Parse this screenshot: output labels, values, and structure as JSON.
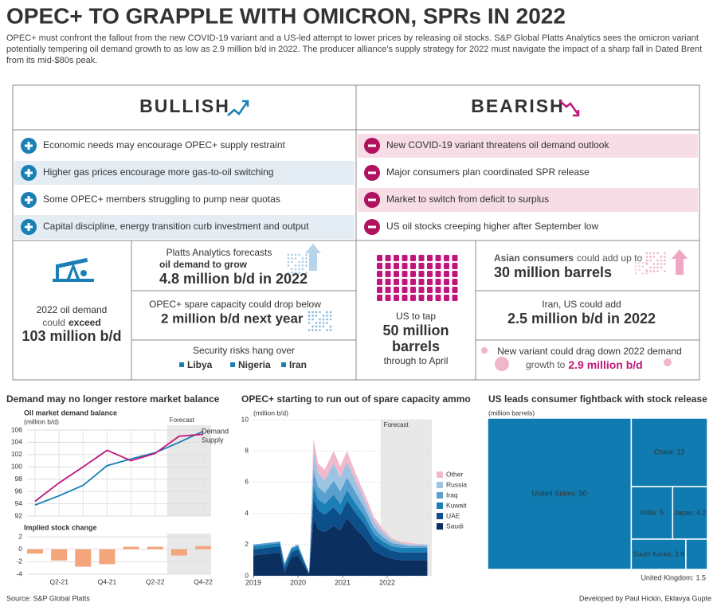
{
  "header": {
    "title": "OPEC+ TO GRAPPLE WITH OMICRON, SPRs IN 2022",
    "subtitle": "OPEC+ must confront the fallout from the new COVID-19 variant and a US-led attempt to lower prices by releasing oil stocks. S&P Global Platts Analytics sees the omicron variant potentially tempering oil demand growth to as low as 2.9 million b/d in 2022. The producer alliance's supply strategy for 2022 must navigate the impact of a sharp fall in Dated Brent from its mid-$80s peak."
  },
  "bullish": {
    "heading": "BULLISH",
    "items": [
      "Economic needs may encourage OPEC+ supply restraint",
      "Higher gas prices encourage more gas-to-oil switching",
      "Some OPEC+ members struggling to pump near quotas",
      "Capital discipline, energy transition curb investment and output"
    ],
    "demand": {
      "line_1": "2022 oil demand",
      "line_2": "could",
      "bold": "exceed",
      "highlight": "103 million b/d"
    },
    "growth": {
      "line_1": "Platts Analytics forecasts",
      "bold": "oil demand to grow",
      "highlight": "4.8 million b/d in 2022"
    },
    "spare": {
      "line_1": "OPEC+ spare capacity could drop below",
      "highlight": "2 million b/d next year"
    },
    "security": {
      "line_1": "Security risks hang over",
      "countries": [
        "Libya",
        "Nigeria",
        "Iran"
      ]
    }
  },
  "bearish": {
    "heading": "BEARISH",
    "items": [
      "New COVID-19 variant threatens oil demand outlook",
      "Major consumers plan coordinated SPR release",
      "Market to switch from deficit to surplus",
      "US oil stocks creeping higher after September low"
    ],
    "spr": {
      "line_1": "US to tap",
      "highlight": "50 million",
      "highlight_2": "barrels",
      "line_2": "through to April"
    },
    "asia": {
      "bold": "Asian consumers",
      "line_1": "could add up to",
      "highlight": "30 million barrels"
    },
    "supply": {
      "line_1": "Iran, US could add",
      "highlight": "2.5 million b/d in 2022"
    },
    "variant": {
      "line_1": "New variant could drag down 2022 demand",
      "line_2": "growth to",
      "highlight": "2.9 million b/d"
    }
  },
  "chart_data": [
    {
      "type": "line",
      "title": "Demand may no longer restore market balance",
      "ylabel": "Oil market demand balance",
      "unit": "(million b/d)",
      "annotation": "Forecast",
      "ylim": [
        92,
        106
      ],
      "yticks": [
        92,
        94,
        96,
        98,
        100,
        102,
        104,
        106
      ],
      "grid": true,
      "series": [
        {
          "name": "Demand",
          "color": "#1a7fb5",
          "values": [
            93.8,
            95.3,
            97.0,
            100.2,
            101.3,
            102.3,
            104.0,
            105.8
          ]
        },
        {
          "name": "Supply",
          "color": "#c0157a",
          "values": [
            94.4,
            97.4,
            100.0,
            102.7,
            101.0,
            102.2,
            105.0,
            105.3
          ]
        }
      ]
    },
    {
      "type": "bar",
      "title": "Implied stock change",
      "categories": [
        null,
        "Q2-21",
        null,
        "Q4-21",
        null,
        "Q2-22",
        null,
        "Q4-22"
      ],
      "values": [
        -0.7,
        -1.8,
        -2.8,
        -2.4,
        0.4,
        0.4,
        -1.0,
        0.5
      ],
      "color": "#f4a57c",
      "ylim": [
        -4,
        2
      ],
      "yticks": [
        -4,
        -2,
        0,
        2
      ],
      "grid": true
    },
    {
      "type": "area",
      "title": "OPEC+ starting to run out of spare capacity ammo",
      "unit": "(million b/d)",
      "annotation": "Forecast",
      "stacked": true,
      "x": [
        2019.0,
        2019.3,
        2019.6,
        2019.7,
        2019.85,
        2020.0,
        2020.25,
        2020.35,
        2020.45,
        2020.6,
        2020.8,
        2020.95,
        2021.1,
        2021.3,
        2021.5,
        2021.7,
        2021.9,
        2022.1,
        2022.3,
        2022.5,
        2022.9
      ],
      "xlim": [
        2019,
        2023
      ],
      "xticks": [
        2019,
        2020,
        2021,
        2022
      ],
      "ylim": [
        0,
        10
      ],
      "yticks": [
        0,
        2,
        4,
        6,
        8,
        10
      ],
      "grid": true,
      "series": [
        {
          "name": "Saudi",
          "color": "#0b2f5e",
          "values": [
            1.3,
            1.4,
            1.5,
            0.2,
            1.2,
            1.3,
            0.1,
            3.7,
            3.0,
            2.8,
            3.2,
            2.9,
            3.7,
            3.0,
            2.4,
            1.6,
            1.3,
            1.1,
            1.0,
            1.0,
            1.0
          ]
        },
        {
          "name": "UAE",
          "color": "#0d4f8b",
          "values": [
            0.4,
            0.4,
            0.4,
            0.3,
            0.3,
            0.4,
            0.05,
            1.3,
            1.2,
            1.1,
            1.2,
            1.0,
            1.1,
            1.0,
            0.9,
            0.7,
            0.6,
            0.5,
            0.5,
            0.5,
            0.5
          ]
        },
        {
          "name": "Kuwait",
          "color": "#1a7fb5",
          "values": [
            0.2,
            0.2,
            0.2,
            0.2,
            0.2,
            0.2,
            0.05,
            0.8,
            0.7,
            0.7,
            0.8,
            0.7,
            0.7,
            0.6,
            0.5,
            0.4,
            0.3,
            0.3,
            0.3,
            0.3,
            0.3
          ]
        },
        {
          "name": "Iraq",
          "color": "#5aa0cf",
          "values": [
            0.1,
            0.1,
            0.1,
            0.1,
            0.1,
            0.1,
            0,
            1.0,
            0.8,
            0.7,
            0.9,
            0.8,
            0.8,
            0.7,
            0.5,
            0.4,
            0.3,
            0.2,
            0.2,
            0.1,
            0.1
          ]
        },
        {
          "name": "Russia",
          "color": "#9cc4e2",
          "values": [
            0,
            0,
            0,
            0,
            0,
            0,
            0,
            1.2,
            0.9,
            0.8,
            1.1,
            0.9,
            1.0,
            0.7,
            0.5,
            0.4,
            0.3,
            0.2,
            0.1,
            0.1,
            0.1
          ]
        },
        {
          "name": "Other",
          "color": "#f2b8cc",
          "values": [
            0,
            0,
            0,
            0,
            0,
            0,
            0,
            0.8,
            0.6,
            0.7,
            0.8,
            0.7,
            0.7,
            0.5,
            0.4,
            0.3,
            0.2,
            0.1,
            0.1,
            0.1,
            0
          ]
        }
      ]
    },
    {
      "type": "treemap",
      "title": "US leads consumer fightback with stock release",
      "unit": "(million barrels)",
      "color": "#0f7bb0",
      "values": [
        50,
        12,
        5,
        4.2,
        3.8,
        1.5
      ],
      "value_labels": [
        "United States: 50",
        "China: 12",
        "India: 5",
        "Japan: 4.2",
        "South Korea: 3.8",
        "United Kingdom: 1.5"
      ]
    }
  ],
  "footer": {
    "source": "Source: S&P Global Platts",
    "credit": "Developed by Paul Hickin, Eklavya Gupte"
  }
}
